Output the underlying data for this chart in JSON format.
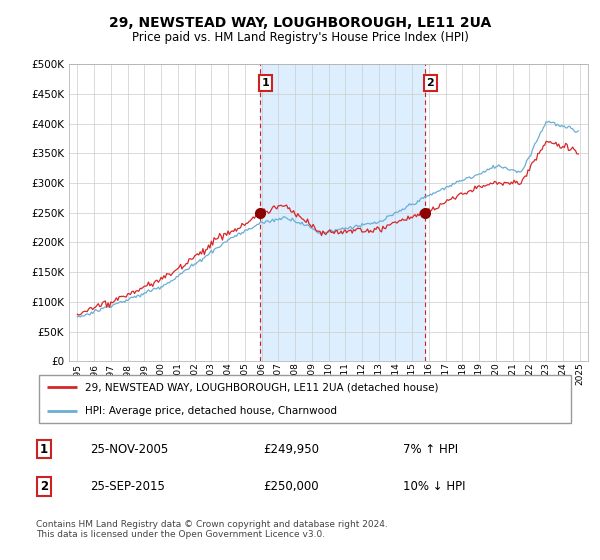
{
  "title": "29, NEWSTEAD WAY, LOUGHBOROUGH, LE11 2UA",
  "subtitle": "Price paid vs. HM Land Registry's House Price Index (HPI)",
  "legend_line1": "29, NEWSTEAD WAY, LOUGHBOROUGH, LE11 2UA (detached house)",
  "legend_line2": "HPI: Average price, detached house, Charnwood",
  "annotation1_date": "25-NOV-2005",
  "annotation1_price": "£249,950",
  "annotation1_hpi": "7% ↑ HPI",
  "annotation2_date": "25-SEP-2015",
  "annotation2_price": "£250,000",
  "annotation2_hpi": "10% ↓ HPI",
  "sale1_year": 2005.92,
  "sale1_val": 249950,
  "sale2_year": 2015.75,
  "sale2_val": 250000,
  "footer": "Contains HM Land Registry data © Crown copyright and database right 2024.\nThis data is licensed under the Open Government Licence v3.0.",
  "hpi_color": "#6baed6",
  "price_color": "#d62728",
  "marker_color": "#8b0000",
  "shade_color": "#ddeeff",
  "background_color": "#ffffff",
  "grid_color": "#cccccc",
  "ylim": [
    0,
    500000
  ],
  "yticks": [
    0,
    50000,
    100000,
    150000,
    200000,
    250000,
    300000,
    350000,
    400000,
    450000,
    500000
  ],
  "xlim": [
    1994.5,
    2025.5
  ],
  "xticks": [
    1995,
    1996,
    1997,
    1998,
    1999,
    2000,
    2001,
    2002,
    2003,
    2004,
    2005,
    2006,
    2007,
    2008,
    2009,
    2010,
    2011,
    2012,
    2013,
    2014,
    2015,
    2016,
    2017,
    2018,
    2019,
    2020,
    2021,
    2022,
    2023,
    2024,
    2025
  ]
}
